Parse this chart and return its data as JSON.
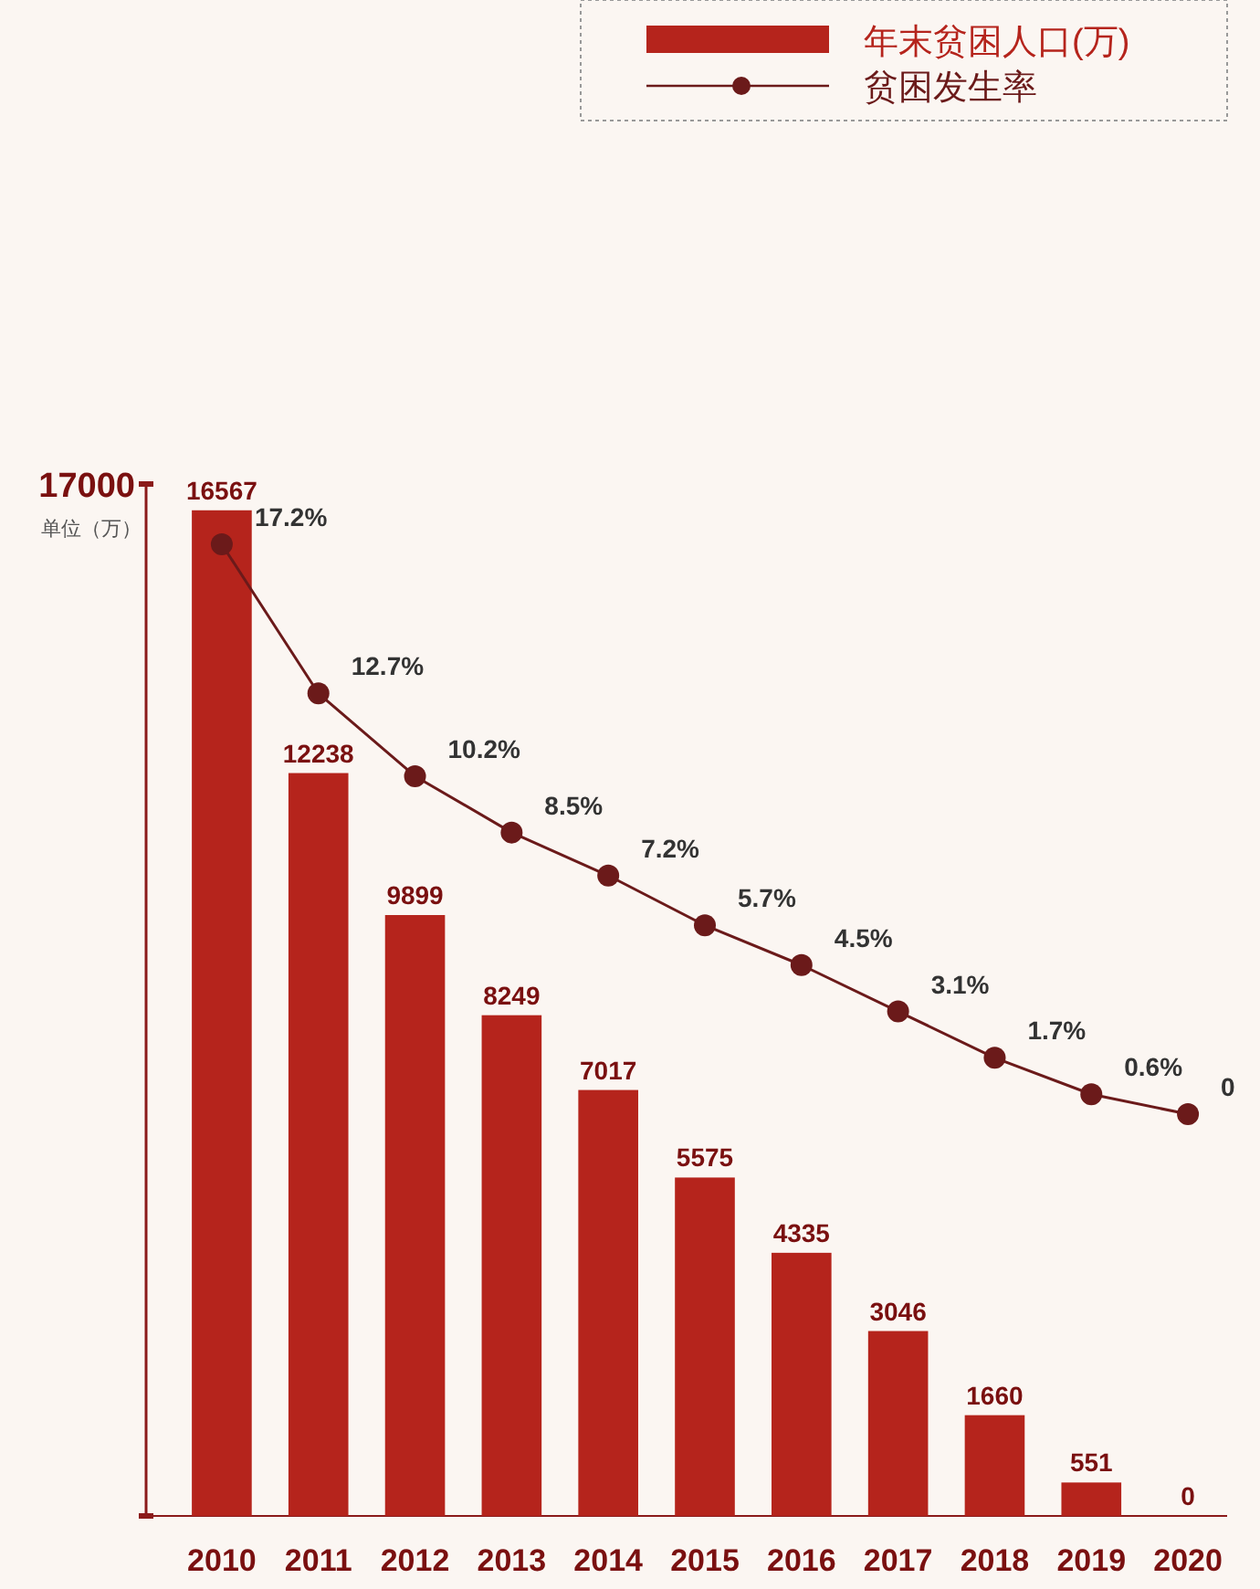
{
  "chart_data": {
    "type": "bar",
    "categories": [
      "2010",
      "2011",
      "2012",
      "2013",
      "2014",
      "2015",
      "2016",
      "2017",
      "2018",
      "2019",
      "2020"
    ],
    "series": [
      {
        "name": "年末贫困人口(万)",
        "color": "#b5241c",
        "values": [
          16567,
          12238,
          9899,
          8249,
          7017,
          5575,
          4335,
          3046,
          1660,
          551,
          0
        ]
      },
      {
        "name": "贫困发生率",
        "type": "line",
        "axis": "y2",
        "color": "#6b1a1a",
        "values": [
          17.2,
          12.7,
          10.2,
          8.5,
          7.2,
          5.7,
          4.5,
          3.1,
          1.7,
          0.6,
          0
        ],
        "value_labels": [
          "17.2%",
          "12.7%",
          "10.2%",
          "8.5%",
          "7.2%",
          "5.7%",
          "4.5%",
          "3.1%",
          "1.7%",
          "0.6%",
          "0"
        ]
      }
    ],
    "ylim": [
      0,
      17000
    ],
    "yticks": [
      {
        "value": 0,
        "label": null
      },
      {
        "value": 17000,
        "label": "17000"
      }
    ],
    "tick_labels": "xy",
    "annotations": [
      "单位（万）"
    ],
    "data_labels": true,
    "marker": "circle",
    "legend": "top right",
    "grid": false
  }
}
